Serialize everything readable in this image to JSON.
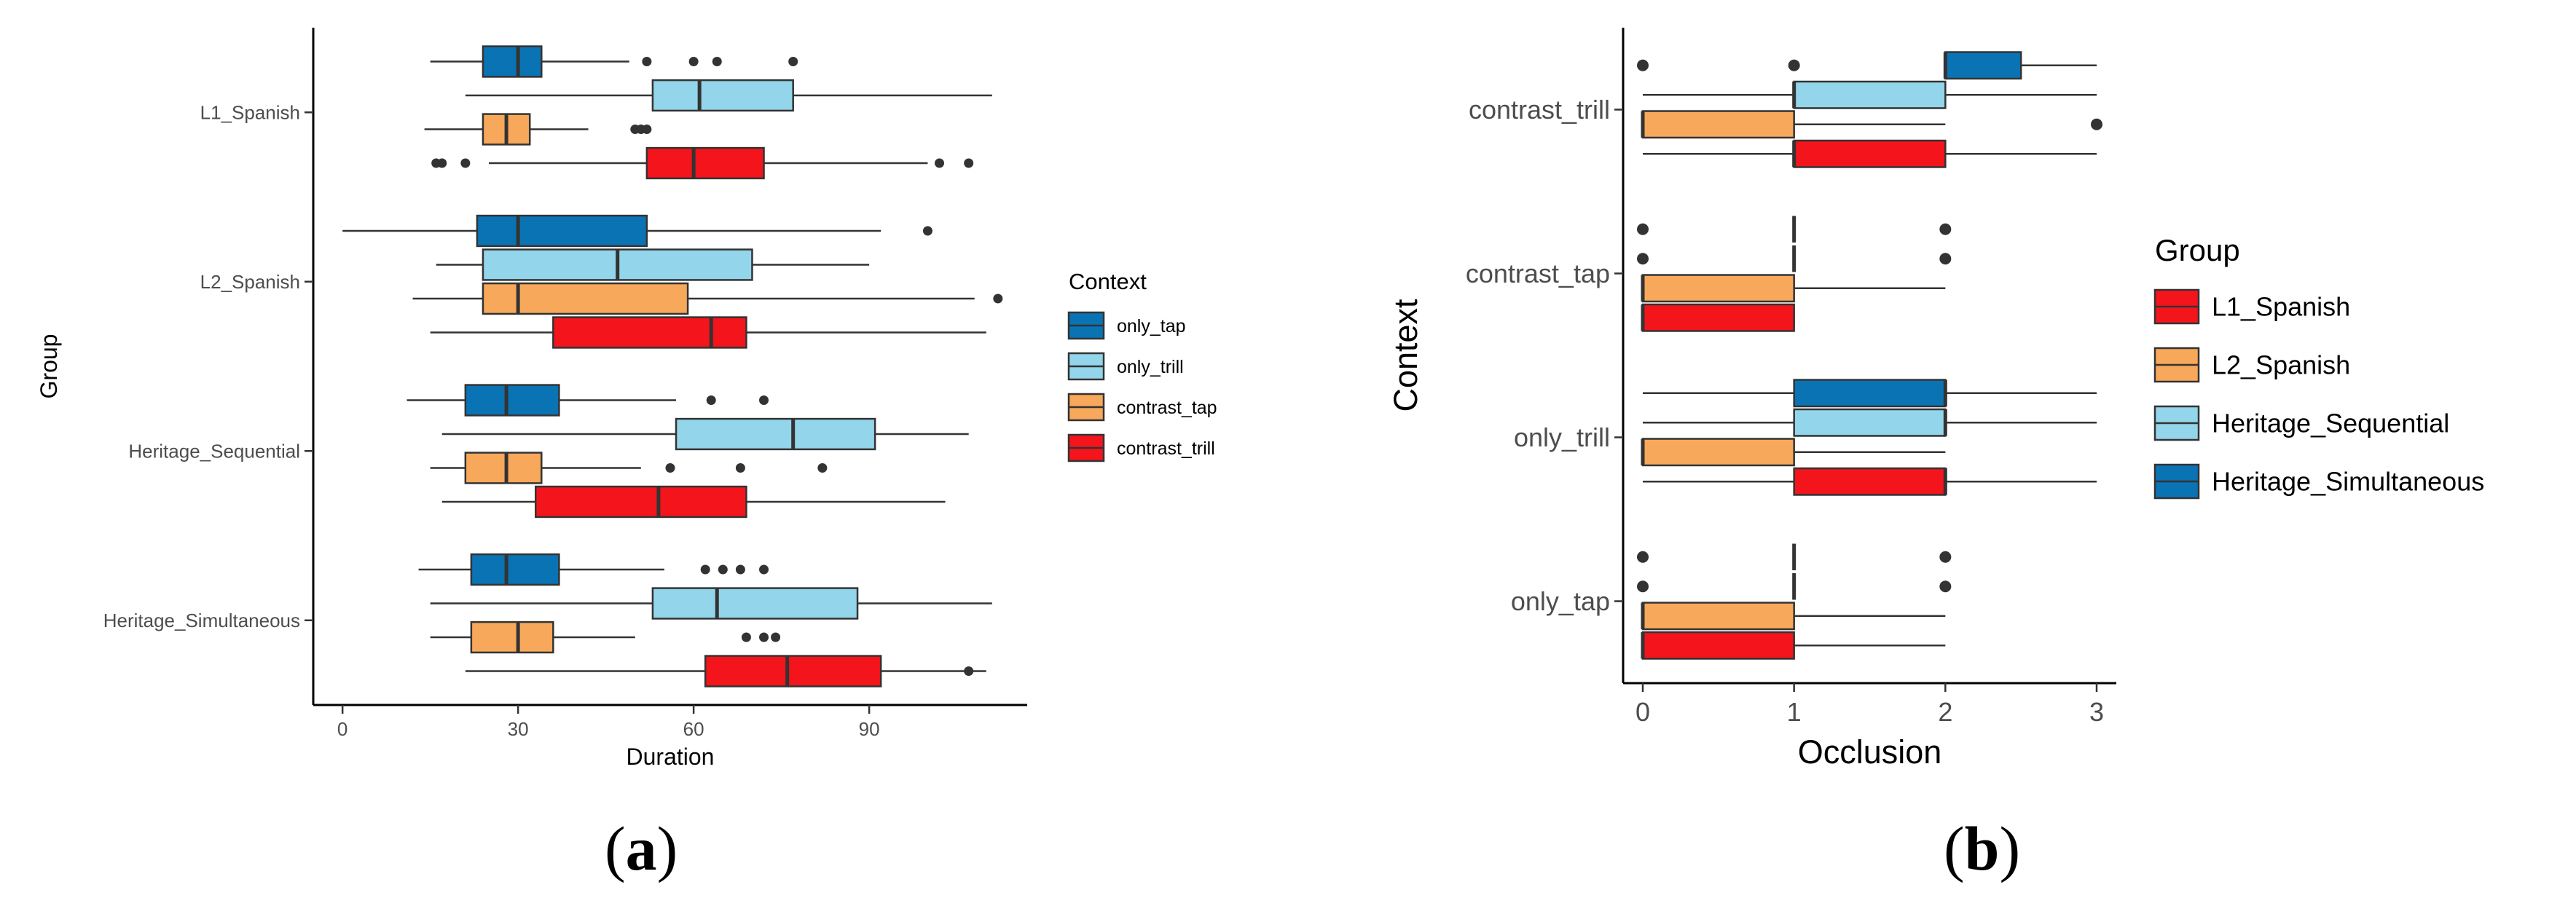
{
  "chart_data": [
    {
      "type": "boxplot",
      "orientation": "horizontal",
      "xlabel": "Duration",
      "ylabel": "Group",
      "xlim": [
        -5,
        117
      ],
      "x_ticks": [
        0,
        30,
        60,
        90
      ],
      "categories": [
        "L1_Spanish",
        "L2_Spanish",
        "Heritage_Sequential",
        "Heritage_Simultaneous"
      ],
      "legend": {
        "title": "Context",
        "position": "right",
        "entries": [
          {
            "label": "only_tap",
            "color": "#0a73b4"
          },
          {
            "label": "only_trill",
            "color": "#93d5ea"
          },
          {
            "label": "contrast_tap",
            "color": "#f8a85a"
          },
          {
            "label": "contrast_trill",
            "color": "#f4141c"
          }
        ]
      },
      "boxes": [
        {
          "group": "L1_Spanish",
          "context": "only_tap",
          "whisker_low": 15,
          "q1": 24,
          "median": 30,
          "q3": 34,
          "whisker_high": 49,
          "outliers": [
            52,
            60,
            64,
            77
          ]
        },
        {
          "group": "L1_Spanish",
          "context": "only_trill",
          "whisker_low": 21,
          "q1": 53,
          "median": 61,
          "q3": 77,
          "whisker_high": 111,
          "outliers": []
        },
        {
          "group": "L1_Spanish",
          "context": "contrast_tap",
          "whisker_low": 14,
          "q1": 24,
          "median": 28,
          "q3": 32,
          "whisker_high": 42,
          "outliers": [
            50,
            51,
            52
          ]
        },
        {
          "group": "L1_Spanish",
          "context": "contrast_trill",
          "whisker_low": 25,
          "q1": 52,
          "median": 60,
          "q3": 72,
          "whisker_high": 100,
          "outliers": [
            16,
            17,
            21,
            102,
            107
          ]
        },
        {
          "group": "L2_Spanish",
          "context": "only_tap",
          "whisker_low": 0,
          "q1": 23,
          "median": 30,
          "q3": 52,
          "whisker_high": 92,
          "outliers": [
            100
          ]
        },
        {
          "group": "L2_Spanish",
          "context": "only_trill",
          "whisker_low": 16,
          "q1": 24,
          "median": 47,
          "q3": 70,
          "whisker_high": 90,
          "outliers": []
        },
        {
          "group": "L2_Spanish",
          "context": "contrast_tap",
          "whisker_low": 12,
          "q1": 24,
          "median": 30,
          "q3": 59,
          "whisker_high": 108,
          "outliers": [
            112
          ]
        },
        {
          "group": "L2_Spanish",
          "context": "contrast_trill",
          "whisker_low": 15,
          "q1": 36,
          "median": 63,
          "q3": 69,
          "whisker_high": 110,
          "outliers": []
        },
        {
          "group": "Heritage_Sequential",
          "context": "only_tap",
          "whisker_low": 11,
          "q1": 21,
          "median": 28,
          "q3": 37,
          "whisker_high": 57,
          "outliers": [
            63,
            72
          ]
        },
        {
          "group": "Heritage_Sequential",
          "context": "only_trill",
          "whisker_low": 17,
          "q1": 57,
          "median": 77,
          "q3": 91,
          "whisker_high": 107,
          "outliers": []
        },
        {
          "group": "Heritage_Sequential",
          "context": "contrast_tap",
          "whisker_low": 15,
          "q1": 21,
          "median": 28,
          "q3": 34,
          "whisker_high": 51,
          "outliers": [
            56,
            68,
            82
          ]
        },
        {
          "group": "Heritage_Sequential",
          "context": "contrast_trill",
          "whisker_low": 17,
          "q1": 33,
          "median": 54,
          "q3": 69,
          "whisker_high": 103,
          "outliers": []
        },
        {
          "group": "Heritage_Simultaneous",
          "context": "only_tap",
          "whisker_low": 13,
          "q1": 22,
          "median": 28,
          "q3": 37,
          "whisker_high": 55,
          "outliers": [
            62,
            65,
            68,
            72
          ]
        },
        {
          "group": "Heritage_Simultaneous",
          "context": "only_trill",
          "whisker_low": 15,
          "q1": 53,
          "median": 64,
          "q3": 88,
          "whisker_high": 111,
          "outliers": []
        },
        {
          "group": "Heritage_Simultaneous",
          "context": "contrast_tap",
          "whisker_low": 15,
          "q1": 22,
          "median": 30,
          "q3": 36,
          "whisker_high": 50,
          "outliers": [
            69,
            72,
            74
          ]
        },
        {
          "group": "Heritage_Simultaneous",
          "context": "contrast_trill",
          "whisker_low": 21,
          "q1": 62,
          "median": 76,
          "q3": 92,
          "whisker_high": 110,
          "outliers": [
            107
          ]
        }
      ]
    },
    {
      "type": "boxplot",
      "orientation": "horizontal",
      "xlabel": "Occlusion",
      "ylabel": "Context",
      "xlim": [
        -0.13,
        3.13
      ],
      "x_ticks": [
        0,
        1,
        2,
        3
      ],
      "categories": [
        "contrast_trill",
        "contrast_tap",
        "only_trill",
        "only_tap"
      ],
      "legend": {
        "title": "Group",
        "position": "right",
        "entries": [
          {
            "label": "L1_Spanish",
            "color": "#f4141c"
          },
          {
            "label": "L2_Spanish",
            "color": "#f8a85a"
          },
          {
            "label": "Heritage_Sequential",
            "color": "#93d5ea"
          },
          {
            "label": "Heritage_Simultaneous",
            "color": "#0a73b4"
          }
        ]
      },
      "boxes": [
        {
          "context": "contrast_trill",
          "group": "Heritage_Simultaneous",
          "whisker_low": 2,
          "q1": 2,
          "median": 2,
          "q3": 2.5,
          "whisker_high": 3,
          "outliers": [
            0,
            1
          ]
        },
        {
          "context": "contrast_trill",
          "group": "Heritage_Sequential",
          "whisker_low": 0,
          "q1": 1,
          "median": 1,
          "q3": 2,
          "whisker_high": 3,
          "outliers": []
        },
        {
          "context": "contrast_trill",
          "group": "L2_Spanish",
          "whisker_low": 0,
          "q1": 0,
          "median": 0,
          "q3": 1,
          "whisker_high": 2,
          "outliers": [
            3
          ]
        },
        {
          "context": "contrast_trill",
          "group": "L1_Spanish",
          "whisker_low": 0,
          "q1": 1,
          "median": 1,
          "q3": 2,
          "whisker_high": 3,
          "outliers": []
        },
        {
          "context": "contrast_tap",
          "group": "Heritage_Simultaneous",
          "whisker_low": 1,
          "q1": 1,
          "median": 1,
          "q3": 1,
          "whisker_high": 1,
          "outliers": [
            0,
            2
          ]
        },
        {
          "context": "contrast_tap",
          "group": "Heritage_Sequential",
          "whisker_low": 1,
          "q1": 1,
          "median": 1,
          "q3": 1,
          "whisker_high": 1,
          "outliers": [
            0,
            2
          ]
        },
        {
          "context": "contrast_tap",
          "group": "L2_Spanish",
          "whisker_low": 0,
          "q1": 0,
          "median": 0,
          "q3": 1,
          "whisker_high": 2,
          "outliers": []
        },
        {
          "context": "contrast_tap",
          "group": "L1_Spanish",
          "whisker_low": 0,
          "q1": 0,
          "median": 0,
          "q3": 1,
          "whisker_high": 1,
          "outliers": []
        },
        {
          "context": "only_trill",
          "group": "Heritage_Simultaneous",
          "whisker_low": 0,
          "q1": 1,
          "median": 2,
          "q3": 2,
          "whisker_high": 3,
          "outliers": []
        },
        {
          "context": "only_trill",
          "group": "Heritage_Sequential",
          "whisker_low": 0,
          "q1": 1,
          "median": 2,
          "q3": 2,
          "whisker_high": 3,
          "outliers": []
        },
        {
          "context": "only_trill",
          "group": "L2_Spanish",
          "whisker_low": 0,
          "q1": 0,
          "median": 0,
          "q3": 1,
          "whisker_high": 2,
          "outliers": []
        },
        {
          "context": "only_trill",
          "group": "L1_Spanish",
          "whisker_low": 0,
          "q1": 1,
          "median": 2,
          "q3": 2,
          "whisker_high": 3,
          "outliers": []
        },
        {
          "context": "only_tap",
          "group": "Heritage_Simultaneous",
          "whisker_low": 1,
          "q1": 1,
          "median": 1,
          "q3": 1,
          "whisker_high": 1,
          "outliers": [
            0,
            2
          ]
        },
        {
          "context": "only_tap",
          "group": "Heritage_Sequential",
          "whisker_low": 1,
          "q1": 1,
          "median": 1,
          "q3": 1,
          "whisker_high": 1,
          "outliers": [
            0,
            2
          ]
        },
        {
          "context": "only_tap",
          "group": "L2_Spanish",
          "whisker_low": 0,
          "q1": 0,
          "median": 0,
          "q3": 1,
          "whisker_high": 2,
          "outliers": []
        },
        {
          "context": "only_tap",
          "group": "L1_Spanish",
          "whisker_low": 0,
          "q1": 0,
          "median": 0,
          "q3": 1,
          "whisker_high": 2,
          "outliers": []
        }
      ]
    }
  ],
  "captions": {
    "a": {
      "open": "(",
      "letter": "a",
      "close": ")"
    },
    "b": {
      "open": "(",
      "letter": "b",
      "close": ")"
    }
  }
}
